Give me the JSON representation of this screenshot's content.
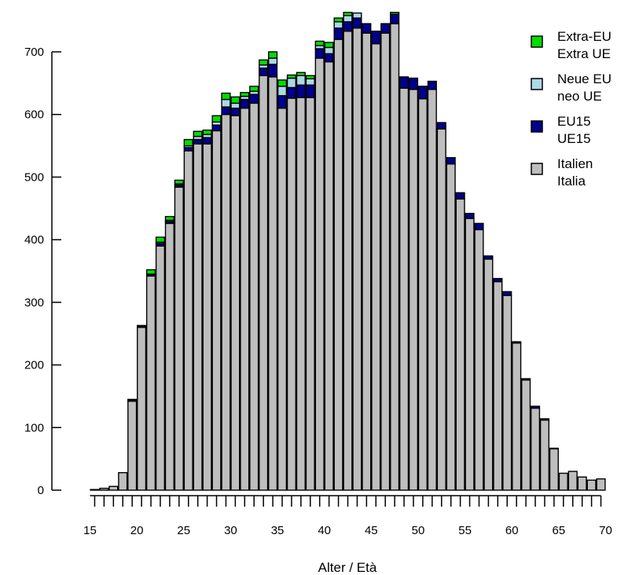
{
  "chart_data": {
    "type": "bar",
    "stacked": true,
    "xlabel": "Alter / Età",
    "ylabel": "",
    "ylim": [
      0,
      760
    ],
    "yticks": [
      0,
      100,
      200,
      300,
      400,
      500,
      600,
      700
    ],
    "xticks": [
      15,
      20,
      25,
      30,
      35,
      40,
      45,
      50,
      55,
      60,
      65,
      70
    ],
    "grid": false,
    "legend_position": "top-right",
    "categories": [
      15,
      16,
      17,
      18,
      19,
      20,
      21,
      22,
      23,
      24,
      25,
      26,
      27,
      28,
      29,
      30,
      31,
      32,
      33,
      34,
      35,
      36,
      37,
      38,
      39,
      40,
      41,
      42,
      43,
      44,
      45,
      46,
      47,
      48,
      49,
      50,
      51,
      52,
      53,
      54,
      55,
      56,
      57,
      58,
      59,
      60,
      61,
      62,
      63,
      64,
      65,
      66,
      67,
      68,
      69
    ],
    "series": [
      {
        "name": "Italien\nItalia",
        "color": "#bebebe",
        "values": [
          1,
          3,
          6,
          28,
          142,
          260,
          342,
          390,
          426,
          484,
          542,
          553,
          553,
          574,
          600,
          598,
          610,
          618,
          662,
          660,
          610,
          626,
          627,
          627,
          690,
          684,
          720,
          733,
          738,
          730,
          713,
          730,
          745,
          642,
          640,
          625,
          640,
          577,
          521,
          465,
          434,
          416,
          369,
          333,
          311,
          235,
          176,
          131,
          112,
          66,
          27,
          30,
          21,
          16,
          18
        ]
      },
      {
        "name": "EU15\nUE15",
        "color": "#00008b",
        "values": [
          0,
          0,
          0,
          0,
          2,
          2,
          2,
          4,
          3,
          3,
          5,
          7,
          10,
          9,
          12,
          12,
          14,
          14,
          12,
          20,
          20,
          17,
          20,
          20,
          15,
          13,
          18,
          15,
          16,
          15,
          20,
          15,
          15,
          18,
          18,
          20,
          13,
          10,
          10,
          10,
          8,
          10,
          5,
          5,
          6,
          2,
          2,
          3,
          2,
          1,
          0,
          0,
          0,
          0,
          0
        ]
      },
      {
        "name": "Neue EU\nneo UE",
        "color": "#add8e6",
        "values": [
          0,
          0,
          0,
          0,
          0,
          0,
          1,
          2,
          2,
          2,
          3,
          5,
          5,
          5,
          12,
          8,
          5,
          5,
          5,
          10,
          15,
          15,
          15,
          10,
          5,
          10,
          10,
          10,
          8,
          0,
          0,
          0,
          0,
          0,
          0,
          0,
          0,
          0,
          0,
          0,
          0,
          0,
          0,
          0,
          0,
          0,
          0,
          0,
          0,
          0,
          0,
          0,
          0,
          0,
          0
        ]
      },
      {
        "name": "Extra-EU\nExtra UE",
        "color": "#00dd00",
        "values": [
          0,
          0,
          0,
          0,
          1,
          1,
          7,
          8,
          6,
          6,
          10,
          8,
          7,
          10,
          10,
          10,
          6,
          8,
          8,
          10,
          10,
          5,
          5,
          5,
          7,
          8,
          6,
          5,
          0,
          0,
          0,
          0,
          3,
          0,
          0,
          0,
          0,
          0,
          0,
          0,
          0,
          0,
          0,
          0,
          0,
          0,
          0,
          0,
          0,
          0,
          0,
          0,
          0,
          0,
          0
        ]
      }
    ]
  }
}
